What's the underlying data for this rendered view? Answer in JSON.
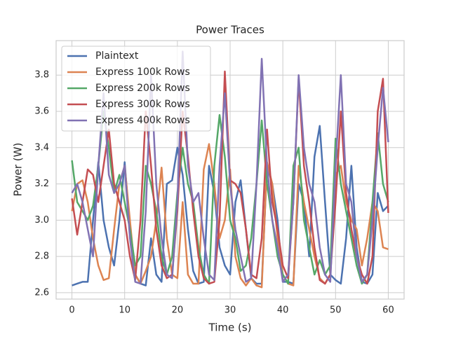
{
  "chart_data": {
    "type": "line",
    "title": "Power Traces",
    "xlabel": "Time (s)",
    "ylabel": "Power (W)",
    "x": [
      0,
      1,
      2,
      3,
      4,
      5,
      6,
      7,
      8,
      9,
      10,
      11,
      12,
      13,
      14,
      15,
      16,
      17,
      18,
      19,
      20,
      21,
      22,
      23,
      24,
      25,
      26,
      27,
      28,
      29,
      30,
      31,
      32,
      33,
      34,
      35,
      36,
      37,
      38,
      39,
      40,
      41,
      42,
      43,
      44,
      45,
      46,
      47,
      48,
      49,
      50,
      51,
      52,
      53,
      54,
      55,
      56,
      57,
      58,
      59,
      60
    ],
    "series": [
      {
        "name": "Plaintext",
        "color": "#4c72b0",
        "values": [
          2.64,
          2.65,
          2.66,
          2.66,
          3.0,
          3.32,
          3.0,
          2.85,
          2.75,
          3.0,
          3.32,
          2.95,
          2.7,
          2.65,
          2.64,
          2.9,
          2.7,
          2.66,
          3.2,
          3.22,
          3.4,
          3.25,
          2.95,
          2.72,
          2.65,
          2.66,
          3.3,
          3.15,
          2.85,
          2.75,
          2.7,
          3.1,
          3.22,
          2.95,
          2.68,
          2.65,
          2.65,
          3.3,
          3.2,
          3.0,
          2.66,
          2.66,
          2.65,
          3.2,
          3.1,
          2.8,
          3.35,
          3.52,
          3.1,
          2.7,
          2.67,
          2.65,
          2.9,
          3.3,
          2.85,
          2.66,
          2.65,
          2.7,
          3.15,
          3.05,
          3.08
        ]
      },
      {
        "name": "Express 100k Rows",
        "color": "#dd8452",
        "values": [
          3.05,
          3.2,
          3.22,
          3.1,
          2.9,
          2.75,
          2.67,
          2.68,
          2.95,
          3.2,
          3.3,
          3.0,
          2.7,
          2.65,
          2.72,
          2.8,
          3.0,
          3.29,
          2.9,
          2.7,
          2.68,
          3.1,
          2.7,
          2.65,
          2.65,
          3.28,
          3.42,
          3.2,
          2.9,
          3.0,
          3.28,
          2.8,
          2.68,
          2.64,
          2.68,
          2.64,
          2.63,
          3.32,
          3.2,
          2.9,
          2.7,
          2.65,
          2.64,
          3.3,
          3.1,
          2.95,
          2.8,
          2.68,
          2.65,
          2.7,
          3.25,
          3.3,
          3.1,
          3.0,
          2.95,
          2.75,
          2.9,
          3.1,
          3.05,
          2.85,
          2.84
        ]
      },
      {
        "name": "Express 200k Rows",
        "color": "#55a868",
        "values": [
          3.33,
          3.1,
          3.05,
          3.0,
          3.08,
          3.3,
          3.6,
          3.4,
          3.15,
          3.25,
          3.1,
          2.95,
          2.75,
          2.8,
          3.3,
          3.2,
          3.05,
          2.8,
          2.7,
          2.8,
          3.15,
          3.4,
          3.2,
          3.1,
          2.85,
          2.7,
          2.65,
          3.3,
          3.58,
          3.35,
          3.0,
          2.9,
          2.72,
          2.75,
          2.9,
          3.2,
          3.55,
          3.2,
          3.0,
          2.8,
          2.7,
          2.65,
          3.3,
          3.4,
          3.0,
          2.85,
          2.7,
          2.78,
          2.7,
          2.75,
          3.45,
          3.2,
          3.05,
          2.9,
          2.75,
          2.65,
          2.7,
          3.1,
          3.48,
          3.2,
          3.1
        ]
      },
      {
        "name": "Express 300k Rows",
        "color": "#c44e52",
        "values": [
          3.12,
          2.92,
          3.1,
          3.28,
          3.25,
          3.1,
          3.3,
          3.5,
          3.2,
          3.1,
          3.0,
          2.8,
          2.67,
          3.0,
          3.6,
          3.3,
          2.95,
          2.75,
          2.68,
          2.7,
          3.05,
          3.6,
          3.35,
          3.05,
          2.8,
          2.68,
          2.65,
          2.66,
          3.0,
          3.82,
          3.22,
          3.2,
          3.15,
          2.95,
          2.7,
          2.68,
          2.9,
          3.5,
          3.1,
          2.95,
          2.75,
          2.68,
          3.1,
          3.78,
          3.3,
          3.1,
          2.85,
          2.67,
          2.65,
          2.7,
          3.1,
          3.6,
          3.15,
          2.95,
          2.8,
          2.7,
          2.65,
          2.8,
          3.6,
          3.78,
          3.04
        ]
      },
      {
        "name": "Express 400k Rows",
        "color": "#8172b3",
        "values": [
          3.15,
          3.2,
          3.1,
          2.95,
          2.8,
          3.3,
          3.7,
          3.25,
          3.15,
          3.2,
          3.3,
          2.9,
          2.66,
          2.65,
          3.05,
          3.8,
          3.2,
          2.9,
          2.7,
          2.68,
          3.1,
          3.93,
          3.3,
          3.1,
          3.15,
          2.9,
          2.7,
          2.67,
          3.3,
          3.7,
          3.2,
          2.95,
          2.8,
          2.66,
          2.68,
          3.2,
          3.89,
          3.3,
          3.0,
          2.85,
          2.66,
          2.7,
          3.1,
          3.8,
          3.4,
          3.2,
          3.1,
          2.85,
          2.7,
          2.66,
          3.3,
          3.8,
          3.2,
          3.1,
          2.8,
          2.66,
          2.7,
          3.0,
          3.4,
          3.73,
          3.43
        ]
      }
    ],
    "xlim": [
      -3,
      63
    ],
    "ylim": [
      2.565,
      3.99
    ],
    "xticks": [
      0,
      10,
      20,
      30,
      40,
      50,
      60
    ],
    "yticks": [
      2.6,
      2.8,
      {
        "value": 3,
        "label": "3.0"
      },
      3.2,
      3.4,
      3.6,
      3.8
    ],
    "grid": true,
    "legend": "upper left"
  }
}
